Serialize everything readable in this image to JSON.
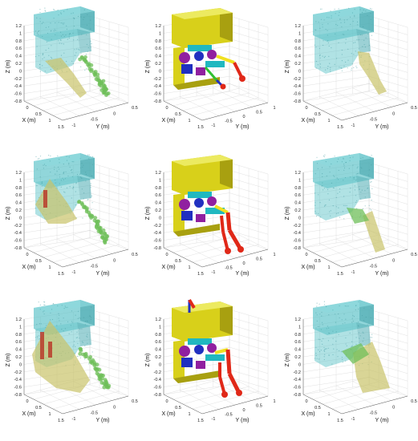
{
  "axes": {
    "zlabel": "Z (m)",
    "xlabel": "X (m)",
    "ylabel": "Y (m)",
    "z_ticks": [
      "1.2",
      "1",
      "0.8",
      "0.6",
      "0.4",
      "0.2",
      "0",
      "-0.2",
      "-0.4",
      "-0.6",
      "-0.8"
    ],
    "x_ticks": [
      "0",
      "0.5",
      "1",
      "1.5"
    ],
    "y_ticks": [
      "-1",
      "-0.5",
      "0",
      "0.5"
    ],
    "y_ticks_mid": [
      "-1",
      "-0.5",
      "0",
      "0.5",
      "1"
    ]
  },
  "colors": {
    "robot_body_cloud": "#5ec3c8",
    "workspace_yellow": "#c9c36a",
    "workspace_green": "#6fbf5a",
    "collision_red": "#b83a2a",
    "cad_body": "#d8d01a",
    "cad_joint_blue": "#2030c0",
    "cad_joint_purple": "#9020a0",
    "cad_link_cyan": "#20b8c0",
    "cad_link_red": "#e02818"
  },
  "panels": [
    {
      "id": "r1c1",
      "type": "pointcloud",
      "row": 1,
      "col": 1
    },
    {
      "id": "r1c2",
      "type": "cad",
      "row": 1,
      "col": 2
    },
    {
      "id": "r1c3",
      "type": "pointcloud",
      "row": 1,
      "col": 3
    },
    {
      "id": "r2c1",
      "type": "pointcloud",
      "row": 2,
      "col": 1
    },
    {
      "id": "r2c2",
      "type": "cad",
      "row": 2,
      "col": 2
    },
    {
      "id": "r2c3",
      "type": "pointcloud",
      "row": 2,
      "col": 3
    },
    {
      "id": "r3c1",
      "type": "pointcloud",
      "row": 3,
      "col": 1
    },
    {
      "id": "r3c2",
      "type": "cad",
      "row": 3,
      "col": 2
    },
    {
      "id": "r3c3",
      "type": "pointcloud",
      "row": 3,
      "col": 3
    }
  ]
}
